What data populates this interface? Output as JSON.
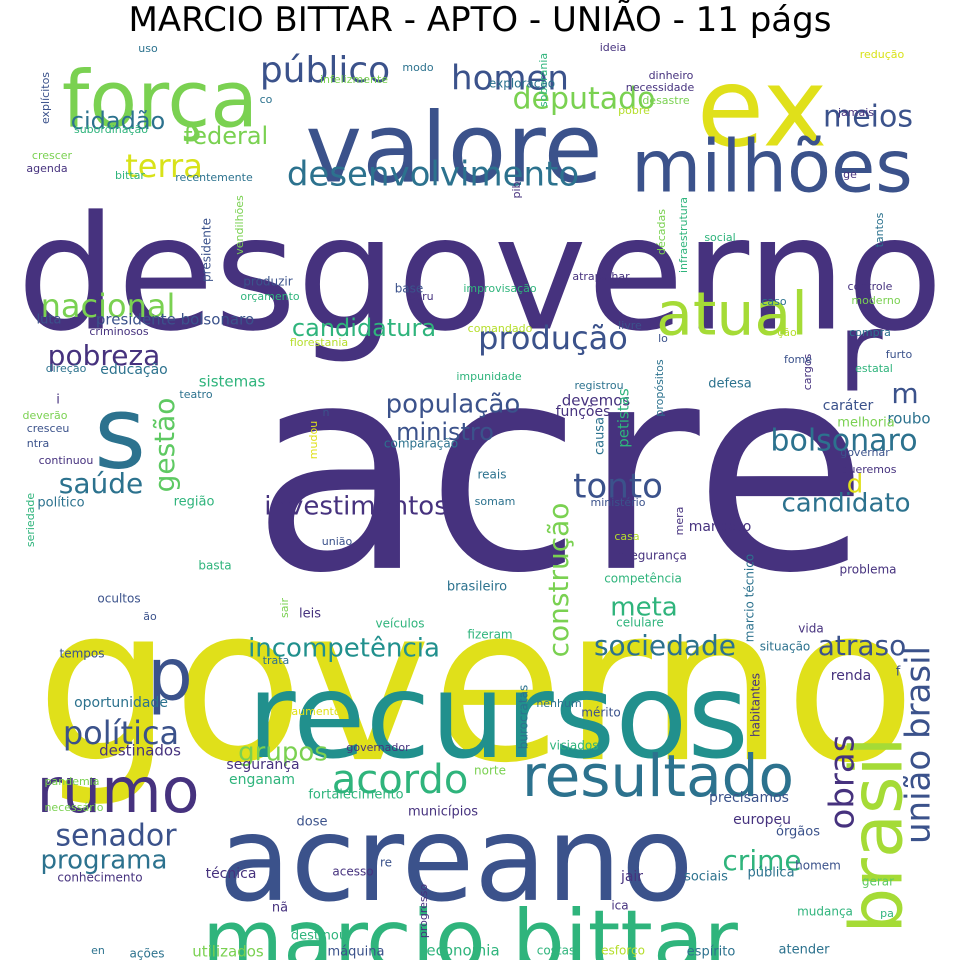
{
  "title": "MARCIO BITTAR - APTO - UNIÃO - 11 págs",
  "words": [
    {
      "text": "acre",
      "color": "#46327e"
    },
    {
      "text": "governo",
      "color": "#e0e01a"
    },
    {
      "text": "desgoverno",
      "color": "#46327e"
    },
    {
      "text": "recursos",
      "color": "#21908d"
    },
    {
      "text": "acreano",
      "color": "#3b528b"
    },
    {
      "text": "marcio bittar",
      "color": "#2fb47c"
    },
    {
      "text": "valore",
      "color": "#3b528b"
    },
    {
      "text": "ex",
      "color": "#e0e01a"
    },
    {
      "text": "milhões",
      "color": "#3b528b"
    },
    {
      "text": "força",
      "color": "#7ad151"
    },
    {
      "text": "s",
      "color": "#2c728e"
    },
    {
      "text": "r",
      "color": "#46327e"
    },
    {
      "text": "atual",
      "color": "#a5db36"
    },
    {
      "text": "brasil",
      "color": "#a5db36"
    },
    {
      "text": "resultado",
      "color": "#2c728e"
    },
    {
      "text": "rumo",
      "color": "#46327e"
    },
    {
      "text": "p",
      "color": "#3b528b"
    },
    {
      "text": "desenvolvimento",
      "color": "#2c728e"
    },
    {
      "text": "acordo",
      "color": "#2fb47c"
    },
    {
      "text": "público",
      "color": "#3b528b"
    },
    {
      "text": "homen",
      "color": "#3b528b"
    },
    {
      "text": "deputado",
      "color": "#7ad151"
    },
    {
      "text": "meios",
      "color": "#3b528b"
    },
    {
      "text": "terra",
      "color": "#d8e219"
    },
    {
      "text": "federal",
      "color": "#7ad151"
    },
    {
      "text": "cidadão",
      "color": "#2c728e"
    },
    {
      "text": "nacional",
      "color": "#7ad151"
    },
    {
      "text": "produção",
      "color": "#3b528b"
    },
    {
      "text": "pobreza",
      "color": "#46327e"
    },
    {
      "text": "candidatura",
      "color": "#2fb47c"
    },
    {
      "text": "população",
      "color": "#3b528b"
    },
    {
      "text": "ministro",
      "color": "#3b528b"
    },
    {
      "text": "bolsonaro",
      "color": "#2c728e"
    },
    {
      "text": "m",
      "color": "#3b528b"
    },
    {
      "text": "saúde",
      "color": "#2c728e"
    },
    {
      "text": "gestão",
      "color": "#5ec962"
    },
    {
      "text": "tonto",
      "color": "#3b528b"
    },
    {
      "text": "d",
      "color": "#e0e01a"
    },
    {
      "text": "candidato",
      "color": "#2c728e"
    },
    {
      "text": "investimentos",
      "color": "#46327e"
    },
    {
      "text": "construção",
      "color": "#7ad151"
    },
    {
      "text": "meta",
      "color": "#2fb47c"
    },
    {
      "text": "incompetência",
      "color": "#21908d"
    },
    {
      "text": "sociedade",
      "color": "#2c728e"
    },
    {
      "text": "atraso",
      "color": "#3b528b"
    },
    {
      "text": "união brasil",
      "color": "#3b528b"
    },
    {
      "text": "política",
      "color": "#3b528b"
    },
    {
      "text": "grupos",
      "color": "#7ad151"
    },
    {
      "text": "obras",
      "color": "#46327e"
    },
    {
      "text": "senador",
      "color": "#3b528b"
    },
    {
      "text": "programa",
      "color": "#2c728e"
    },
    {
      "text": "crime",
      "color": "#2fb47c"
    },
    {
      "text": "presidente bolsonaro",
      "color": "#3b528b"
    },
    {
      "text": "educação",
      "color": "#2c728e"
    },
    {
      "text": "luta",
      "color": "#3b528b"
    },
    {
      "text": "sistemas",
      "color": "#2fb47c"
    },
    {
      "text": "devemos",
      "color": "#46327e"
    },
    {
      "text": "funções",
      "color": "#46327e"
    },
    {
      "text": "petistas",
      "color": "#2fb47c"
    },
    {
      "text": "causa",
      "color": "#2c728e"
    },
    {
      "text": "defesa",
      "color": "#2c728e"
    },
    {
      "text": "caráter",
      "color": "#3b528b"
    },
    {
      "text": "roubo",
      "color": "#2c728e"
    },
    {
      "text": "melhoria",
      "color": "#7ad151"
    },
    {
      "text": "renda",
      "color": "#46327e"
    },
    {
      "text": "destinados",
      "color": "#46327e"
    },
    {
      "text": "segurança",
      "color": "#46327e"
    },
    {
      "text": "enganam",
      "color": "#2fb47c"
    },
    {
      "text": "fortalecimento",
      "color": "#2fb47c"
    },
    {
      "text": "municípios",
      "color": "#46327e"
    },
    {
      "text": "precisamos",
      "color": "#3b528b"
    },
    {
      "text": "europeu",
      "color": "#46327e"
    },
    {
      "text": "órgãos",
      "color": "#3b528b"
    },
    {
      "text": "técnica",
      "color": "#46327e"
    },
    {
      "text": "pública",
      "color": "#2c728e"
    },
    {
      "text": "sociais",
      "color": "#2c728e"
    },
    {
      "text": "jair",
      "color": "#46327e"
    },
    {
      "text": "homem",
      "color": "#3b528b"
    },
    {
      "text": "economia",
      "color": "#2fb47c"
    },
    {
      "text": "utilizados",
      "color": "#7ad151"
    },
    {
      "text": "máquina",
      "color": "#3b528b"
    },
    {
      "text": "leis",
      "color": "#46327e"
    },
    {
      "text": "veículos",
      "color": "#2fb47c"
    },
    {
      "text": "fizeram",
      "color": "#2fb47c"
    },
    {
      "text": "oportunidade",
      "color": "#2c728e"
    },
    {
      "text": "região",
      "color": "#2fb47c"
    },
    {
      "text": "político",
      "color": "#2c728e"
    },
    {
      "text": "reais",
      "color": "#2c728e"
    },
    {
      "text": "somam",
      "color": "#2c728e"
    },
    {
      "text": "ministério",
      "color": "#3b528b"
    },
    {
      "text": "mandato",
      "color": "#46327e"
    },
    {
      "text": "insegurança",
      "color": "#46327e"
    },
    {
      "text": "competência",
      "color": "#2fb47c"
    },
    {
      "text": "brasileiro",
      "color": "#2c728e"
    },
    {
      "text": "marcio técnico",
      "color": "#2c728e"
    },
    {
      "text": "problema",
      "color": "#46327e"
    },
    {
      "text": "celulare",
      "color": "#2fb47c"
    },
    {
      "text": "vida",
      "color": "#46327e"
    },
    {
      "text": "situação",
      "color": "#2c728e"
    },
    {
      "text": "habitantes",
      "color": "#46327e"
    },
    {
      "text": "burocratas",
      "color": "#2c728e"
    },
    {
      "text": "nenhum",
      "color": "#2c728e"
    },
    {
      "text": "mérito",
      "color": "#3b528b"
    },
    {
      "text": "viciados",
      "color": "#2fb47c"
    },
    {
      "text": "governador",
      "color": "#46327e"
    },
    {
      "text": "norte",
      "color": "#7ad151"
    },
    {
      "text": "dose",
      "color": "#3b528b"
    },
    {
      "text": "acesso",
      "color": "#46327e"
    },
    {
      "text": "re",
      "color": "#3b528b"
    },
    {
      "text": "progresso",
      "color": "#46327e"
    },
    {
      "text": "nã",
      "color": "#46327e"
    },
    {
      "text": "ica",
      "color": "#46327e"
    },
    {
      "text": "gerar",
      "color": "#5ec962"
    },
    {
      "text": "mudança",
      "color": "#2fb47c"
    },
    {
      "text": "pa",
      "color": "#2fb47c"
    },
    {
      "text": "costas",
      "color": "#2fb47c"
    },
    {
      "text": "esforço",
      "color": "#b5de2b"
    },
    {
      "text": "espírito",
      "color": "#2c728e"
    },
    {
      "text": "atender",
      "color": "#2c728e"
    },
    {
      "text": "destinou",
      "color": "#2fb47c"
    },
    {
      "text": "ações",
      "color": "#2c728e"
    },
    {
      "text": "en",
      "color": "#2c728e"
    },
    {
      "text": "conhecimento",
      "color": "#46327e"
    },
    {
      "text": "necessário",
      "color": "#7ad151"
    },
    {
      "text": "pandemia",
      "color": "#7ad151"
    },
    {
      "text": "tempos",
      "color": "#3b528b"
    },
    {
      "text": "ocultos",
      "color": "#3b528b"
    },
    {
      "text": "ão",
      "color": "#3b528b"
    },
    {
      "text": "basta",
      "color": "#2fb47c"
    },
    {
      "text": "sair",
      "color": "#7ad151"
    },
    {
      "text": "trata",
      "color": "#2c728e"
    },
    {
      "text": "aumento",
      "color": "#e0e01a"
    },
    {
      "text": "união",
      "color": "#3b528b"
    },
    {
      "text": "mera",
      "color": "#46327e"
    },
    {
      "text": "casa",
      "color": "#b5de2b"
    },
    {
      "text": "seriedade",
      "color": "#2fb47c"
    },
    {
      "text": "continuou",
      "color": "#46327e"
    },
    {
      "text": "ntra",
      "color": "#3b528b"
    },
    {
      "text": "cresceu",
      "color": "#3b528b"
    },
    {
      "text": "deverão",
      "color": "#7ad151"
    },
    {
      "text": "i",
      "color": "#46327e"
    },
    {
      "text": "direção",
      "color": "#2c728e"
    },
    {
      "text": "teatro",
      "color": "#2c728e"
    },
    {
      "text": "n",
      "color": "#3b528b"
    },
    {
      "text": "mudou",
      "color": "#e0e01a"
    },
    {
      "text": "comparação",
      "color": "#2c728e"
    },
    {
      "text": "impunidade",
      "color": "#2fb47c"
    },
    {
      "text": "registrou",
      "color": "#2c728e"
    },
    {
      "text": "propósitos",
      "color": "#2c728e"
    },
    {
      "text": "cargos",
      "color": "#46327e"
    },
    {
      "text": "estatal",
      "color": "#2fb47c"
    },
    {
      "text": "fome",
      "color": "#3b528b"
    },
    {
      "text": "compra",
      "color": "#2c728e"
    },
    {
      "text": "furto",
      "color": "#3b528b"
    },
    {
      "text": "queremos",
      "color": "#46327e"
    },
    {
      "text": "governar",
      "color": "#3b528b"
    },
    {
      "text": "f",
      "color": "#3b528b"
    },
    {
      "text": "moderno",
      "color": "#7ad151"
    },
    {
      "text": "controle",
      "color": "#46327e"
    },
    {
      "text": "caso",
      "color": "#2c728e"
    },
    {
      "text": "ção",
      "color": "#b5de2b"
    },
    {
      "text": "lo",
      "color": "#3b528b"
    },
    {
      "text": "livre",
      "color": "#3b528b"
    },
    {
      "text": "comandado",
      "color": "#b5de2b"
    },
    {
      "text": "florestania",
      "color": "#b5de2b"
    },
    {
      "text": "criminosos",
      "color": "#46327e"
    },
    {
      "text": "peru",
      "color": "#46327e"
    },
    {
      "text": "base",
      "color": "#3b528b"
    },
    {
      "text": "improvisação",
      "color": "#2fb47c"
    },
    {
      "text": "atrapalhar",
      "color": "#46327e"
    },
    {
      "text": "orçamento",
      "color": "#2fb47c"
    },
    {
      "text": "produzir",
      "color": "#3b528b"
    },
    {
      "text": "presidente",
      "color": "#3b528b"
    },
    {
      "text": "vendilhões",
      "color": "#7ad151"
    },
    {
      "text": "recentemente",
      "color": "#2c728e"
    },
    {
      "text": "bittar",
      "color": "#2fb47c"
    },
    {
      "text": "agenda",
      "color": "#46327e"
    },
    {
      "text": "crescer",
      "color": "#7ad151"
    },
    {
      "text": "pib",
      "color": "#46327e"
    },
    {
      "text": "décadas",
      "color": "#7ad151"
    },
    {
      "text": "infraestrutura",
      "color": "#2fb47c"
    },
    {
      "text": "social",
      "color": "#2fb47c"
    },
    {
      "text": "tantos",
      "color": "#2c728e"
    },
    {
      "text": "ge",
      "color": "#46327e"
    },
    {
      "text": "jamais",
      "color": "#46327e"
    },
    {
      "text": "desastre",
      "color": "#7ad151"
    },
    {
      "text": "pobre",
      "color": "#b5de2b"
    },
    {
      "text": "necessidade",
      "color": "#46327e"
    },
    {
      "text": "dinheiro",
      "color": "#46327e"
    },
    {
      "text": "redução",
      "color": "#d8e219"
    },
    {
      "text": "ideia",
      "color": "#46327e"
    },
    {
      "text": "soberania",
      "color": "#2fb47c"
    },
    {
      "text": "exploração",
      "color": "#2c728e"
    },
    {
      "text": "modo",
      "color": "#2c728e"
    },
    {
      "text": "infelizmente",
      "color": "#7ad151"
    },
    {
      "text": "uso",
      "color": "#2c728e"
    },
    {
      "text": "co",
      "color": "#2c728e"
    },
    {
      "text": "explícitos",
      "color": "#3b528b"
    },
    {
      "text": "subordinação",
      "color": "#2fb47c"
    }
  ]
}
